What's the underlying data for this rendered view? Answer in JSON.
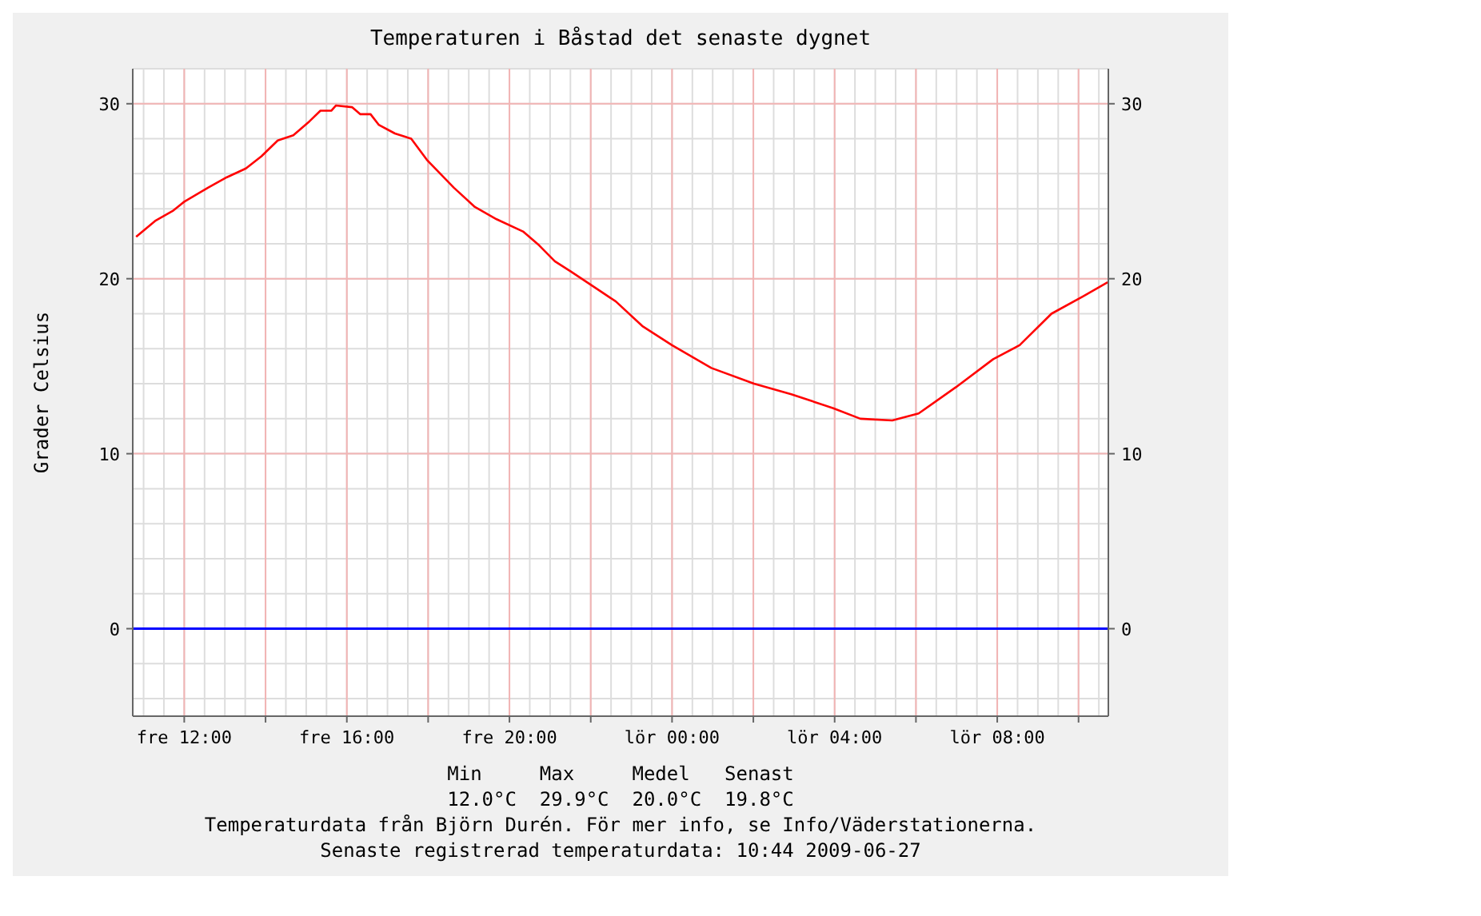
{
  "chart_data": {
    "type": "line",
    "title": "Temperaturen i Båstad det senaste dygnet",
    "ylabel": "Grader Celsius",
    "x": [
      "2009-06-26T10:49",
      "2009-06-26T11:17",
      "2009-06-26T11:44",
      "2009-06-26T12:00",
      "2009-06-26T12:35",
      "2009-06-26T13:03",
      "2009-06-26T13:31",
      "2009-06-26T13:54",
      "2009-06-26T14:18",
      "2009-06-26T14:41",
      "2009-06-26T15:05",
      "2009-06-26T15:21",
      "2009-06-26T15:37",
      "2009-06-26T15:44",
      "2009-06-26T16:08",
      "2009-06-26T16:20",
      "2009-06-26T16:35",
      "2009-06-26T16:47",
      "2009-06-26T17:11",
      "2009-06-26T17:35",
      "2009-06-26T17:58",
      "2009-06-26T18:18",
      "2009-06-26T18:38",
      "2009-06-26T19:09",
      "2009-06-26T19:41",
      "2009-06-26T20:20",
      "2009-06-26T20:44",
      "2009-06-26T21:07",
      "2009-06-26T21:31",
      "2009-06-26T22:10",
      "2009-06-26T22:37",
      "2009-06-26T23:16",
      "2009-06-27T00:00",
      "2009-06-27T00:58",
      "2009-06-27T02:01",
      "2009-06-27T02:56",
      "2009-06-27T03:58",
      "2009-06-27T04:38",
      "2009-06-27T05:25",
      "2009-06-27T06:04",
      "2009-06-27T06:59",
      "2009-06-27T07:54",
      "2009-06-27T08:33",
      "2009-06-27T09:20",
      "2009-06-27T10:07",
      "2009-06-27T10:43"
    ],
    "series": [
      {
        "color": "#ff0000",
        "values": [
          22.4,
          23.3,
          23.9,
          24.4,
          25.2,
          25.8,
          26.3,
          27.0,
          27.9,
          28.2,
          29.0,
          29.6,
          29.6,
          29.9,
          29.8,
          29.4,
          29.4,
          28.8,
          28.3,
          28.0,
          26.8,
          26.0,
          25.2,
          24.1,
          23.4,
          22.7,
          21.9,
          21.0,
          20.4,
          19.4,
          18.7,
          17.3,
          16.2,
          14.9,
          14.0,
          13.4,
          12.6,
          12.0,
          11.9,
          12.3,
          13.8,
          15.4,
          16.2,
          18.0,
          19.0,
          19.8
        ]
      }
    ],
    "xlim": [
      "2009-06-26T10:44",
      "2009-06-27T10:44"
    ],
    "xticks": [
      {
        "value": "2009-06-26T12:00",
        "label": "fre 12:00"
      },
      {
        "value": "2009-06-26T14:00",
        "label": null
      },
      {
        "value": "2009-06-26T16:00",
        "label": "fre 16:00"
      },
      {
        "value": "2009-06-26T18:00",
        "label": null
      },
      {
        "value": "2009-06-26T20:00",
        "label": "fre 20:00"
      },
      {
        "value": "2009-06-26T22:00",
        "label": null
      },
      {
        "value": "2009-06-27T00:00",
        "label": "lör 00:00"
      },
      {
        "value": "2009-06-27T02:00",
        "label": null
      },
      {
        "value": "2009-06-27T04:00",
        "label": "lör 04:00"
      },
      {
        "value": "2009-06-27T06:00",
        "label": null
      },
      {
        "value": "2009-06-27T08:00",
        "label": "lör 08:00"
      },
      {
        "value": "2009-06-27T10:00",
        "label": null
      }
    ],
    "ylim": [
      -5,
      32
    ],
    "yticks": [
      0,
      10,
      20,
      30
    ],
    "y2lim": [
      -5,
      32
    ],
    "y2ticks": [
      0,
      10,
      20,
      30
    ],
    "ref_lines": [
      {
        "axis": "y",
        "value": 0,
        "color": "#0000ff"
      }
    ],
    "grid": true,
    "marker": "none",
    "line_style": "solid",
    "annotations": [
      "Min     Max     Medel   Senast",
      "12.0°C  29.9°C  20.0°C  19.8°C",
      "Temperaturdata från Björn Durén. För mer info, se Info/Väderstationerna.",
      "Senaste registrerad temperaturdata: 10:44 2009-06-27"
    ]
  }
}
